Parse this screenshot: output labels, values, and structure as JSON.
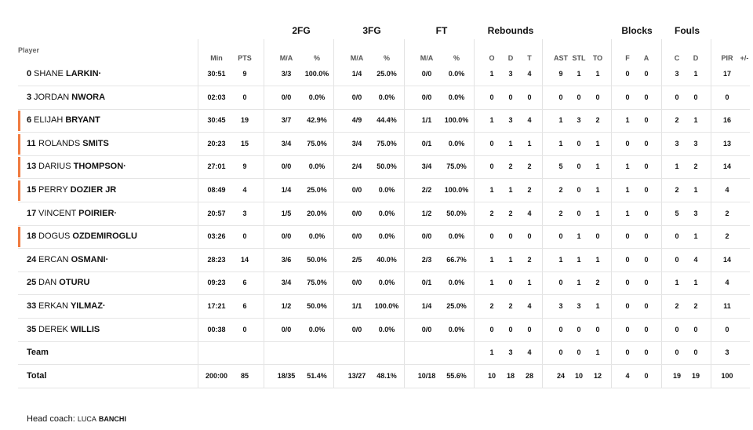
{
  "headers": {
    "player": "Player",
    "groups": {
      "fg2": "2FG",
      "fg3": "3FG",
      "ft": "FT",
      "rebounds": "Rebounds",
      "blocks": "Blocks",
      "fouls": "Fouls"
    },
    "sub": {
      "min": "Min",
      "pts": "PTS",
      "fg2_ma": "M/A",
      "fg2_pct": "%",
      "fg3_ma": "M/A",
      "fg3_pct": "%",
      "ft_ma": "M/A",
      "ft_pct": "%",
      "o": "O",
      "d": "D",
      "t": "T",
      "ast": "AST",
      "stl": "STL",
      "to": "TO",
      "bf": "F",
      "ba": "A",
      "fc": "C",
      "fd": "D",
      "pir": "PIR",
      "pm": "+/-"
    }
  },
  "players": [
    {
      "num": "0",
      "first": "SHANE",
      "last": "LARKIN·",
      "starter": false,
      "min": "30:51",
      "pts": "9",
      "fg2_ma": "3/3",
      "fg2_pct": "100.0%",
      "fg3_ma": "1/4",
      "fg3_pct": "25.0%",
      "ft_ma": "0/0",
      "ft_pct": "0.0%",
      "o": "1",
      "d": "3",
      "t": "4",
      "ast": "9",
      "stl": "1",
      "to": "1",
      "bf": "0",
      "ba": "0",
      "fc": "3",
      "fd": "1",
      "pir": "17",
      "pm": ""
    },
    {
      "num": "3",
      "first": "JORDAN",
      "last": "NWORA",
      "starter": false,
      "min": "02:03",
      "pts": "0",
      "fg2_ma": "0/0",
      "fg2_pct": "0.0%",
      "fg3_ma": "0/0",
      "fg3_pct": "0.0%",
      "ft_ma": "0/0",
      "ft_pct": "0.0%",
      "o": "0",
      "d": "0",
      "t": "0",
      "ast": "0",
      "stl": "0",
      "to": "0",
      "bf": "0",
      "ba": "0",
      "fc": "0",
      "fd": "0",
      "pir": "0",
      "pm": ""
    },
    {
      "num": "6",
      "first": "ELIJAH",
      "last": "BRYANT",
      "starter": true,
      "min": "30:45",
      "pts": "19",
      "fg2_ma": "3/7",
      "fg2_pct": "42.9%",
      "fg3_ma": "4/9",
      "fg3_pct": "44.4%",
      "ft_ma": "1/1",
      "ft_pct": "100.0%",
      "o": "1",
      "d": "3",
      "t": "4",
      "ast": "1",
      "stl": "3",
      "to": "2",
      "bf": "1",
      "ba": "0",
      "fc": "2",
      "fd": "1",
      "pir": "16",
      "pm": ""
    },
    {
      "num": "11",
      "first": "ROLANDS",
      "last": "SMITS",
      "starter": true,
      "min": "20:23",
      "pts": "15",
      "fg2_ma": "3/4",
      "fg2_pct": "75.0%",
      "fg3_ma": "3/4",
      "fg3_pct": "75.0%",
      "ft_ma": "0/1",
      "ft_pct": "0.0%",
      "o": "0",
      "d": "1",
      "t": "1",
      "ast": "1",
      "stl": "0",
      "to": "1",
      "bf": "0",
      "ba": "0",
      "fc": "3",
      "fd": "3",
      "pir": "13",
      "pm": ""
    },
    {
      "num": "13",
      "first": "DARIUS",
      "last": "THOMPSON·",
      "starter": true,
      "min": "27:01",
      "pts": "9",
      "fg2_ma": "0/0",
      "fg2_pct": "0.0%",
      "fg3_ma": "2/4",
      "fg3_pct": "50.0%",
      "ft_ma": "3/4",
      "ft_pct": "75.0%",
      "o": "0",
      "d": "2",
      "t": "2",
      "ast": "5",
      "stl": "0",
      "to": "1",
      "bf": "1",
      "ba": "0",
      "fc": "1",
      "fd": "2",
      "pir": "14",
      "pm": ""
    },
    {
      "num": "15",
      "first": "PERRY",
      "last": "DOZIER JR",
      "starter": true,
      "min": "08:49",
      "pts": "4",
      "fg2_ma": "1/4",
      "fg2_pct": "25.0%",
      "fg3_ma": "0/0",
      "fg3_pct": "0.0%",
      "ft_ma": "2/2",
      "ft_pct": "100.0%",
      "o": "1",
      "d": "1",
      "t": "2",
      "ast": "2",
      "stl": "0",
      "to": "1",
      "bf": "1",
      "ba": "0",
      "fc": "2",
      "fd": "1",
      "pir": "4",
      "pm": ""
    },
    {
      "num": "17",
      "first": "VINCENT",
      "last": "POIRIER·",
      "starter": false,
      "min": "20:57",
      "pts": "3",
      "fg2_ma": "1/5",
      "fg2_pct": "20.0%",
      "fg3_ma": "0/0",
      "fg3_pct": "0.0%",
      "ft_ma": "1/2",
      "ft_pct": "50.0%",
      "o": "2",
      "d": "2",
      "t": "4",
      "ast": "2",
      "stl": "0",
      "to": "1",
      "bf": "1",
      "ba": "0",
      "fc": "5",
      "fd": "3",
      "pir": "2",
      "pm": ""
    },
    {
      "num": "18",
      "first": "DOGUS",
      "last": "OZDEMIROGLU",
      "starter": true,
      "min": "03:26",
      "pts": "0",
      "fg2_ma": "0/0",
      "fg2_pct": "0.0%",
      "fg3_ma": "0/0",
      "fg3_pct": "0.0%",
      "ft_ma": "0/0",
      "ft_pct": "0.0%",
      "o": "0",
      "d": "0",
      "t": "0",
      "ast": "0",
      "stl": "1",
      "to": "0",
      "bf": "0",
      "ba": "0",
      "fc": "0",
      "fd": "1",
      "pir": "2",
      "pm": ""
    },
    {
      "num": "24",
      "first": "ERCAN",
      "last": "OSMANI·",
      "starter": false,
      "min": "28:23",
      "pts": "14",
      "fg2_ma": "3/6",
      "fg2_pct": "50.0%",
      "fg3_ma": "2/5",
      "fg3_pct": "40.0%",
      "ft_ma": "2/3",
      "ft_pct": "66.7%",
      "o": "1",
      "d": "1",
      "t": "2",
      "ast": "1",
      "stl": "1",
      "to": "1",
      "bf": "0",
      "ba": "0",
      "fc": "0",
      "fd": "4",
      "pir": "14",
      "pm": ""
    },
    {
      "num": "25",
      "first": "DAN",
      "last": "OTURU",
      "starter": false,
      "min": "09:23",
      "pts": "6",
      "fg2_ma": "3/4",
      "fg2_pct": "75.0%",
      "fg3_ma": "0/0",
      "fg3_pct": "0.0%",
      "ft_ma": "0/1",
      "ft_pct": "0.0%",
      "o": "1",
      "d": "0",
      "t": "1",
      "ast": "0",
      "stl": "1",
      "to": "2",
      "bf": "0",
      "ba": "0",
      "fc": "1",
      "fd": "1",
      "pir": "4",
      "pm": ""
    },
    {
      "num": "33",
      "first": "ERKAN",
      "last": "YILMAZ·",
      "starter": false,
      "min": "17:21",
      "pts": "6",
      "fg2_ma": "1/2",
      "fg2_pct": "50.0%",
      "fg3_ma": "1/1",
      "fg3_pct": "100.0%",
      "ft_ma": "1/4",
      "ft_pct": "25.0%",
      "o": "2",
      "d": "2",
      "t": "4",
      "ast": "3",
      "stl": "3",
      "to": "1",
      "bf": "0",
      "ba": "0",
      "fc": "2",
      "fd": "2",
      "pir": "11",
      "pm": ""
    },
    {
      "num": "35",
      "first": "DEREK",
      "last": "WILLIS",
      "starter": false,
      "min": "00:38",
      "pts": "0",
      "fg2_ma": "0/0",
      "fg2_pct": "0.0%",
      "fg3_ma": "0/0",
      "fg3_pct": "0.0%",
      "ft_ma": "0/0",
      "ft_pct": "0.0%",
      "o": "0",
      "d": "0",
      "t": "0",
      "ast": "0",
      "stl": "0",
      "to": "0",
      "bf": "0",
      "ba": "0",
      "fc": "0",
      "fd": "0",
      "pir": "0",
      "pm": ""
    }
  ],
  "team": {
    "label": "Team",
    "min": "",
    "pts": "",
    "fg2_ma": "",
    "fg2_pct": "",
    "fg3_ma": "",
    "fg3_pct": "",
    "ft_ma": "",
    "ft_pct": "",
    "o": "1",
    "d": "3",
    "t": "4",
    "ast": "0",
    "stl": "0",
    "to": "1",
    "bf": "0",
    "ba": "0",
    "fc": "0",
    "fd": "0",
    "pir": "3",
    "pm": ""
  },
  "total": {
    "label": "Total",
    "min": "200:00",
    "pts": "85",
    "fg2_ma": "18/35",
    "fg2_pct": "51.4%",
    "fg3_ma": "13/27",
    "fg3_pct": "48.1%",
    "ft_ma": "10/18",
    "ft_pct": "55.6%",
    "o": "10",
    "d": "18",
    "t": "28",
    "ast": "24",
    "stl": "10",
    "to": "12",
    "bf": "4",
    "ba": "0",
    "fc": "19",
    "fd": "19",
    "pir": "100",
    "pm": ""
  },
  "coach": {
    "prefix": "Head coach:",
    "first": "LUCA",
    "last": "BANCHI"
  },
  "colors": {
    "starter_marker": "#f07b3f",
    "divider": "#e5e5e5"
  }
}
